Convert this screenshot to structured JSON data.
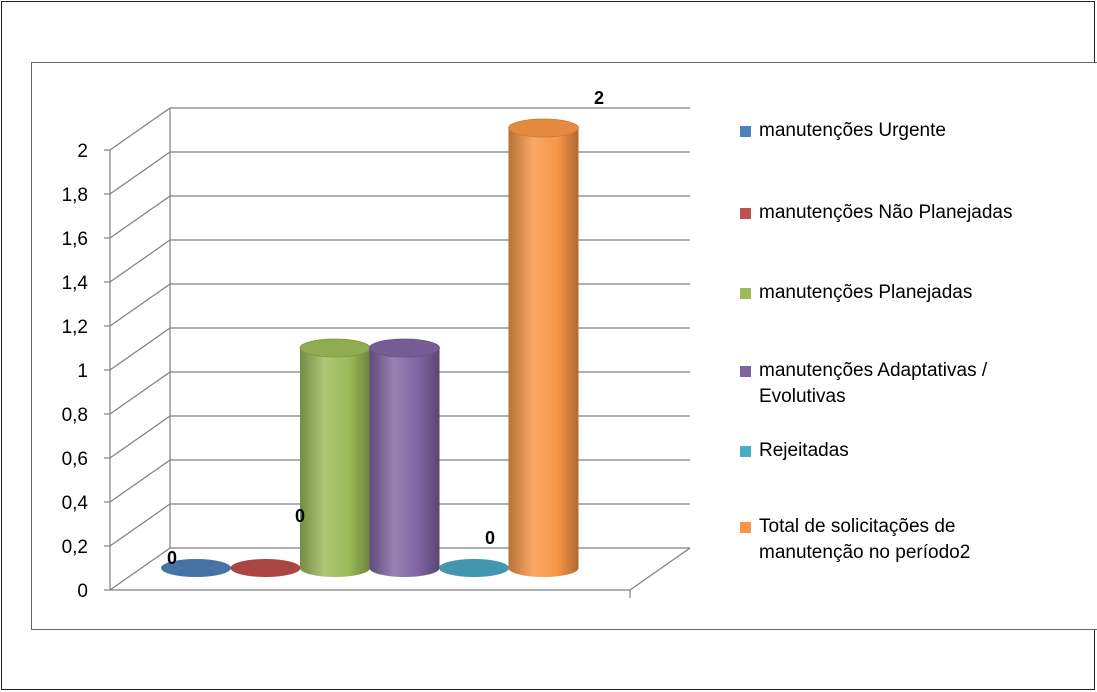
{
  "chart_data": {
    "type": "bar",
    "style": "3d-cylinder",
    "categories": [
      "manutenções Urgente",
      "manutenções Não Planejadas",
      "manutenções Planejadas",
      "manutenções Adaptativas / Evolutivas",
      "Rejeitadas",
      "Total de solicitações de manutenção no período2"
    ],
    "values": [
      0,
      0,
      1,
      1,
      0,
      2
    ],
    "data_labels": [
      "0",
      "0",
      "",
      "",
      "0",
      "2"
    ],
    "colors": [
      "#4F81BD",
      "#C0504D",
      "#9BBB59",
      "#8064A2",
      "#4BACC6",
      "#F79646"
    ],
    "yticks": [
      "0",
      "0,2",
      "0,4",
      "0,6",
      "0,8",
      "1",
      "1,2",
      "1,4",
      "1,6",
      "1,8",
      "2"
    ],
    "ylim": [
      0,
      2
    ],
    "grid": true,
    "legend_position": "right",
    "legend": [
      {
        "label": "manutenções Urgente",
        "color": "#4F81BD"
      },
      {
        "label": "manutenções Não Planejadas",
        "color": "#C0504D"
      },
      {
        "label": "manutenções Planejadas",
        "color": "#9BBB59"
      },
      {
        "label": "manutenções Adaptativas / Evolutivas",
        "color": "#8064A2"
      },
      {
        "label": "Rejeitadas",
        "color": "#4BACC6"
      },
      {
        "label": "Total de solicitações de manutenção no período2",
        "color": "#F79646"
      }
    ]
  }
}
